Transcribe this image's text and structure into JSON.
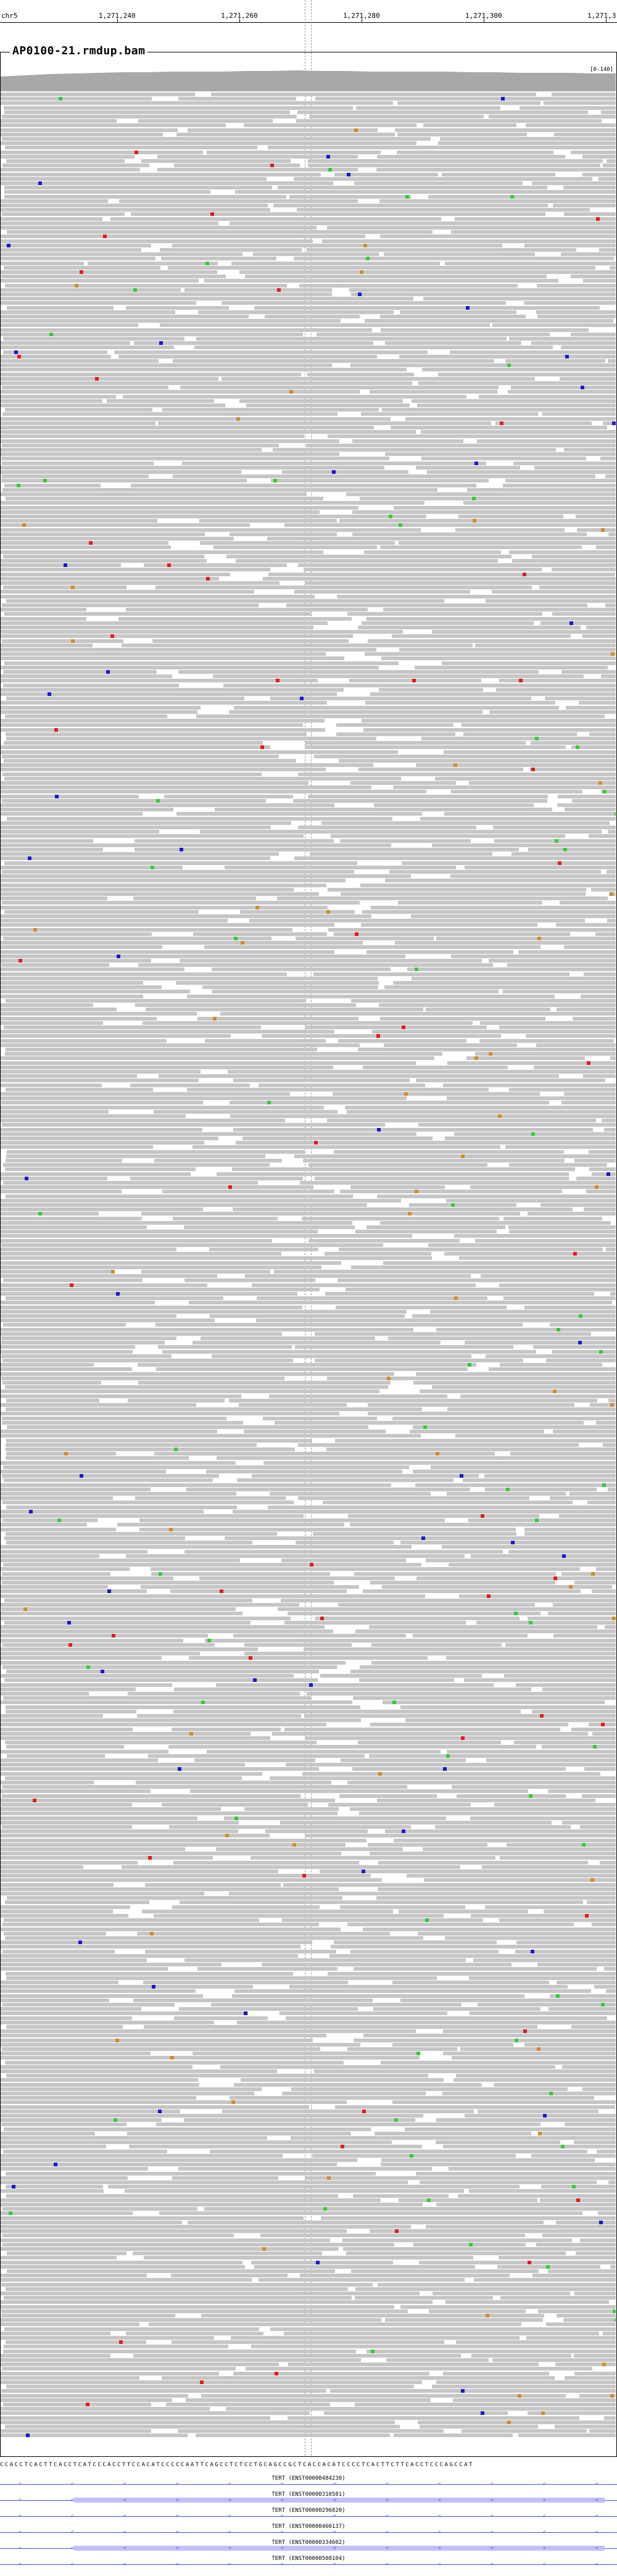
{
  "ruler": {
    "chromosome": "chr5",
    "ticks": [
      "1,271,240",
      "1,271,260",
      "1,271,280",
      "1,271,300",
      "1,271,3"
    ]
  },
  "track": {
    "title": "AP0100-21.rmdup.bam",
    "coverage_range": "[0-140]"
  },
  "reference_sequence": "CCACCTCACTTCACCTCATCCCACCTTCCACATCCCCCAATTCAGCCTCTCCTGCAGCCGCTCACCACATCCCCTCACTTCTTCACCTCCCAGCCAT",
  "genes": [
    {
      "label": "TERT (ENST00000484238)"
    },
    {
      "label": "TERT (ENST00000310581)"
    },
    {
      "label": "TERT (ENST00000296820)"
    },
    {
      "label": "TERT (ENST00000460137)"
    },
    {
      "label": "TERT (ENST00000334602)"
    },
    {
      "label": "TERT (ENST00000508104)"
    }
  ],
  "colors": {
    "read": "#c6c6c6",
    "mismatch_A": "#33cc33",
    "mismatch_C": "#1a1acc",
    "mismatch_G": "#d18b2b",
    "mismatch_T": "#e01c1c",
    "insertion": "#6c3fb5",
    "coverage": "#a8a8a8",
    "gene": "#4d4dff"
  }
}
